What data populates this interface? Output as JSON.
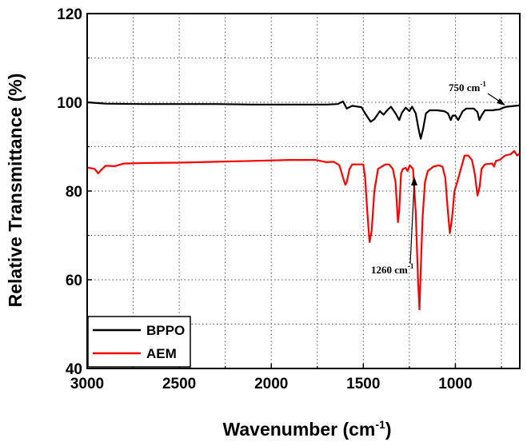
{
  "chart_data": {
    "type": "line",
    "title": "",
    "xlabel": "Wavenumber (cm",
    "xlabel_sup": "-1",
    "xlabel_suffix": ")",
    "ylabel": "Relative Transmittance (%)",
    "xlim": [
      3000,
      650
    ],
    "ylim": [
      40,
      120
    ],
    "xticks": [
      3000,
      2500,
      2000,
      1500,
      1000
    ],
    "yticks": [
      40,
      60,
      80,
      100,
      120
    ],
    "grid": true,
    "legend_position": "bottom-left",
    "series": [
      {
        "name": "BPPO",
        "color": "#000000",
        "points": [
          [
            3000,
            100.0
          ],
          [
            2900,
            99.7
          ],
          [
            2700,
            99.6
          ],
          [
            2500,
            99.6
          ],
          [
            2300,
            99.6
          ],
          [
            2100,
            99.5
          ],
          [
            1900,
            99.5
          ],
          [
            1700,
            99.5
          ],
          [
            1640,
            99.6
          ],
          [
            1610,
            100.2
          ],
          [
            1590,
            98.6
          ],
          [
            1560,
            99.2
          ],
          [
            1510,
            98.9
          ],
          [
            1490,
            97.5
          ],
          [
            1460,
            95.6
          ],
          [
            1440,
            96.2
          ],
          [
            1410,
            98.0
          ],
          [
            1390,
            97.2
          ],
          [
            1370,
            98.2
          ],
          [
            1350,
            99.0
          ],
          [
            1325,
            97.5
          ],
          [
            1305,
            96.0
          ],
          [
            1290,
            97.7
          ],
          [
            1270,
            98.8
          ],
          [
            1250,
            98.0
          ],
          [
            1235,
            99.0
          ],
          [
            1215,
            97.5
          ],
          [
            1200,
            94.0
          ],
          [
            1188,
            91.8
          ],
          [
            1175,
            94.0
          ],
          [
            1160,
            97.5
          ],
          [
            1140,
            98.2
          ],
          [
            1100,
            98.2
          ],
          [
            1060,
            98.0
          ],
          [
            1040,
            97.5
          ],
          [
            1025,
            96.0
          ],
          [
            1015,
            97.0
          ],
          [
            1000,
            97.0
          ],
          [
            985,
            96.0
          ],
          [
            960,
            98.0
          ],
          [
            940,
            98.6
          ],
          [
            900,
            98.6
          ],
          [
            880,
            97.8
          ],
          [
            870,
            96.0
          ],
          [
            858,
            97.0
          ],
          [
            840,
            98.2
          ],
          [
            800,
            98.2
          ],
          [
            780,
            98.3
          ],
          [
            760,
            98.4
          ],
          [
            740,
            98.8
          ],
          [
            720,
            99.0
          ],
          [
            700,
            99.1
          ],
          [
            650,
            99.3
          ]
        ]
      },
      {
        "name": "AEM",
        "color": "#ff0000",
        "points": [
          [
            3000,
            85.3
          ],
          [
            2960,
            85.0
          ],
          [
            2940,
            84.0
          ],
          [
            2920,
            84.9
          ],
          [
            2900,
            85.7
          ],
          [
            2850,
            85.6
          ],
          [
            2800,
            86.2
          ],
          [
            2700,
            86.3
          ],
          [
            2500,
            86.4
          ],
          [
            2300,
            86.6
          ],
          [
            2100,
            86.8
          ],
          [
            1900,
            87.0
          ],
          [
            1760,
            87.0
          ],
          [
            1700,
            86.5
          ],
          [
            1660,
            86.6
          ],
          [
            1630,
            85.8
          ],
          [
            1610,
            83.0
          ],
          [
            1598,
            81.4
          ],
          [
            1590,
            82.0
          ],
          [
            1575,
            85.0
          ],
          [
            1560,
            86.0
          ],
          [
            1500,
            86.0
          ],
          [
            1490,
            83.0
          ],
          [
            1478,
            75.0
          ],
          [
            1466,
            68.5
          ],
          [
            1455,
            71.0
          ],
          [
            1440,
            80.0
          ],
          [
            1420,
            85.0
          ],
          [
            1400,
            85.5
          ],
          [
            1380,
            86.0
          ],
          [
            1360,
            86.0
          ],
          [
            1340,
            85.0
          ],
          [
            1325,
            82.0
          ],
          [
            1312,
            73.0
          ],
          [
            1305,
            75.5
          ],
          [
            1295,
            84.0
          ],
          [
            1285,
            85.0
          ],
          [
            1270,
            85.2
          ],
          [
            1260,
            84.5
          ],
          [
            1248,
            85.8
          ],
          [
            1230,
            85.0
          ],
          [
            1215,
            75.0
          ],
          [
            1203,
            60.0
          ],
          [
            1195,
            53.3
          ],
          [
            1188,
            62.0
          ],
          [
            1178,
            74.0
          ],
          [
            1165,
            82.0
          ],
          [
            1150,
            84.5
          ],
          [
            1120,
            85.5
          ],
          [
            1090,
            85.8
          ],
          [
            1070,
            85.5
          ],
          [
            1055,
            83.0
          ],
          [
            1042,
            76.0
          ],
          [
            1030,
            70.5
          ],
          [
            1018,
            74.0
          ],
          [
            1005,
            80.0
          ],
          [
            990,
            82.0
          ],
          [
            970,
            85.0
          ],
          [
            950,
            88.0
          ],
          [
            930,
            88.0
          ],
          [
            910,
            87.0
          ],
          [
            895,
            84.0
          ],
          [
            880,
            79.0
          ],
          [
            868,
            81.0
          ],
          [
            858,
            85.0
          ],
          [
            840,
            86.0
          ],
          [
            800,
            86.2
          ],
          [
            790,
            85.5
          ],
          [
            780,
            86.8
          ],
          [
            760,
            87.0
          ],
          [
            730,
            88.0
          ],
          [
            700,
            88.3
          ],
          [
            680,
            89.0
          ],
          [
            665,
            88.0
          ],
          [
            650,
            88.5
          ]
        ]
      }
    ],
    "annotations": [
      {
        "text": "750 cm",
        "sup": "-1",
        "x": 750,
        "y": 98.6
      },
      {
        "text": "1260 cm",
        "sup": "-1",
        "x": 1260,
        "y": 85.3
      }
    ]
  }
}
